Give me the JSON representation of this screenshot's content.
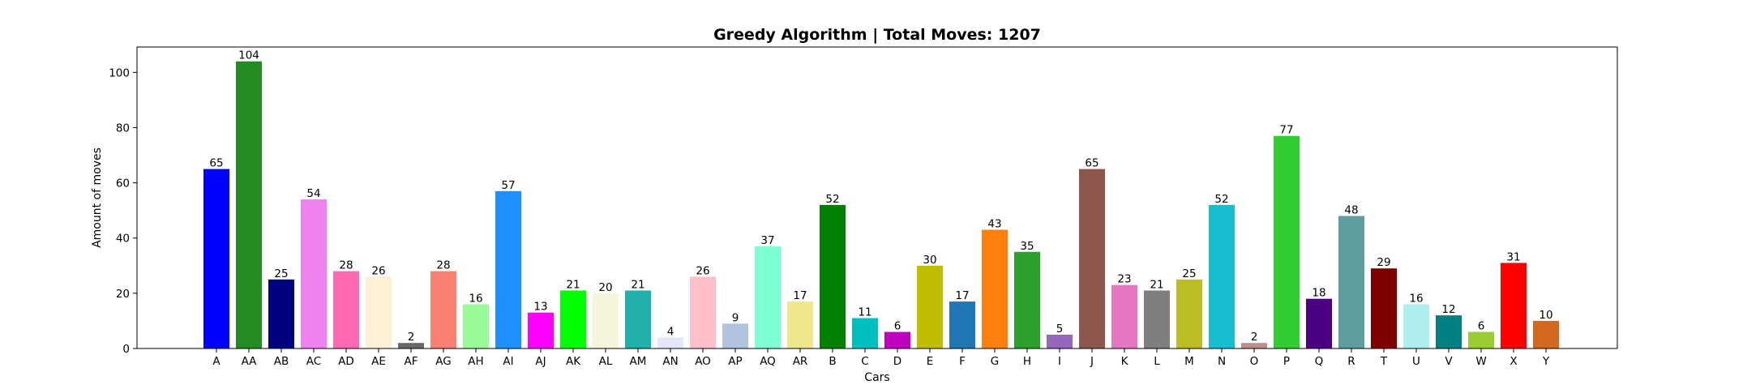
{
  "chart_data": {
    "type": "bar",
    "title": "Greedy Algorithm | Total Moves: 1207",
    "xlabel": "Cars",
    "ylabel": "Amount of moves",
    "ylim": [
      0,
      109.2
    ],
    "yticks": [
      0,
      20,
      40,
      60,
      80,
      100
    ],
    "grid": false,
    "categories": [
      "A",
      "AA",
      "AB",
      "AC",
      "AD",
      "AE",
      "AF",
      "AG",
      "AH",
      "AI",
      "AJ",
      "AK",
      "AL",
      "AM",
      "AN",
      "AO",
      "AP",
      "AQ",
      "AR",
      "B",
      "C",
      "D",
      "E",
      "F",
      "G",
      "H",
      "I",
      "J",
      "K",
      "L",
      "M",
      "N",
      "O",
      "P",
      "Q",
      "R",
      "T",
      "U",
      "V",
      "W",
      "X",
      "Y"
    ],
    "values": [
      65,
      104,
      25,
      54,
      28,
      26,
      2,
      28,
      16,
      57,
      13,
      21,
      20,
      21,
      4,
      26,
      9,
      37,
      17,
      52,
      11,
      6,
      30,
      17,
      43,
      35,
      5,
      65,
      23,
      21,
      25,
      52,
      2,
      77,
      18,
      48,
      29,
      16,
      12,
      6,
      31,
      10
    ],
    "colors": [
      "#0000ff",
      "#228b22",
      "#000080",
      "#ee82ee",
      "#ff69b4",
      "#ffefd5",
      "#696969",
      "#fa8072",
      "#98fb98",
      "#1e90ff",
      "#ff00ff",
      "#00ff00",
      "#f5f5dc",
      "#20b2aa",
      "#e6e6fa",
      "#ffc0cb",
      "#b0c4de",
      "#7fffd4",
      "#f0e68c",
      "#008000",
      "#00bfbf",
      "#bf00bf",
      "#bfbf00",
      "#1f77b4",
      "#ff7f0e",
      "#2ca02c",
      "#9467bd",
      "#8c564b",
      "#e377c2",
      "#7f7f7f",
      "#bcbd22",
      "#17becf",
      "#bc8f8f",
      "#32cd32",
      "#4b0082",
      "#5f9ea0",
      "#800000",
      "#afeeee",
      "#008080",
      "#9acd32",
      "#ff0000",
      "#d2691e"
    ]
  }
}
